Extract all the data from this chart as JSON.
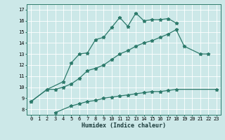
{
  "xlabel": "Humidex (Indice chaleur)",
  "bg_color": "#cce8e8",
  "line_color": "#2d7a6b",
  "grid_color": "#ffffff",
  "xlim": [
    -0.5,
    23.5
  ],
  "ylim": [
    7.5,
    17.5
  ],
  "xticks": [
    0,
    1,
    2,
    3,
    4,
    5,
    6,
    7,
    8,
    9,
    10,
    11,
    12,
    13,
    14,
    15,
    16,
    17,
    18,
    19,
    20,
    21,
    22,
    23
  ],
  "yticks": [
    8,
    9,
    10,
    11,
    12,
    13,
    14,
    15,
    16,
    17
  ],
  "line1_x": [
    0,
    2,
    4,
    5,
    6,
    7,
    8,
    9,
    10,
    11,
    12,
    13,
    14,
    15,
    16,
    17,
    18
  ],
  "line1_y": [
    8.7,
    9.8,
    10.5,
    12.2,
    13.0,
    13.1,
    14.3,
    14.5,
    15.4,
    16.3,
    15.5,
    16.7,
    16.0,
    16.1,
    16.1,
    16.2,
    15.8
  ],
  "line2_x": [
    0,
    2,
    3,
    4,
    5,
    6,
    7,
    8,
    9,
    10,
    11,
    12,
    13,
    14,
    15,
    16,
    17,
    18,
    19,
    21,
    22
  ],
  "line2_y": [
    8.7,
    9.8,
    9.8,
    10.0,
    10.3,
    10.8,
    11.5,
    11.7,
    12.0,
    12.5,
    13.0,
    13.3,
    13.7,
    14.0,
    14.2,
    14.5,
    14.8,
    15.2,
    13.7,
    13.0,
    13.0
  ],
  "line3_x": [
    3,
    5,
    6,
    7,
    8,
    9,
    10,
    11,
    12,
    13,
    14,
    15,
    16,
    17,
    18,
    23
  ],
  "line3_y": [
    7.7,
    8.3,
    8.5,
    8.7,
    8.8,
    9.0,
    9.1,
    9.2,
    9.3,
    9.4,
    9.5,
    9.6,
    9.6,
    9.7,
    9.8,
    9.8
  ]
}
